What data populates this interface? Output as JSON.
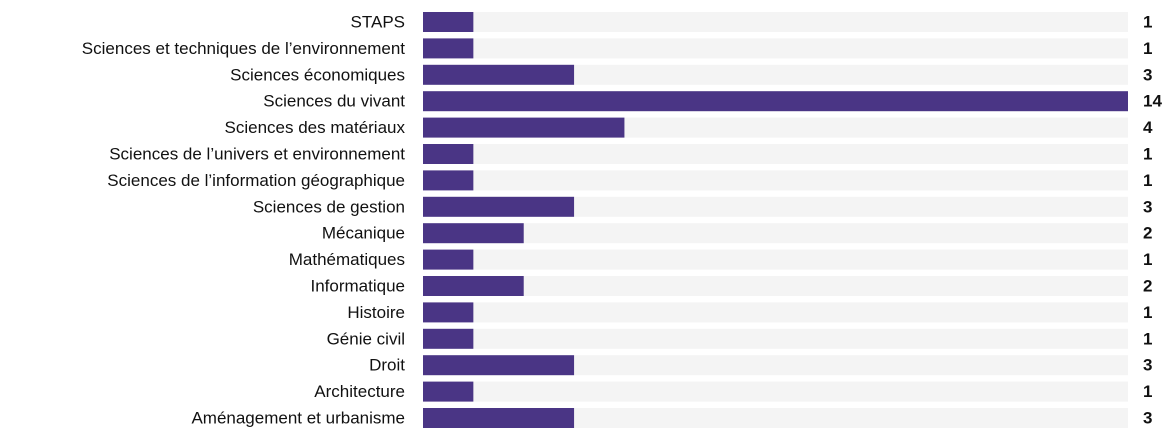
{
  "chart_data": {
    "type": "bar",
    "orientation": "horizontal",
    "categories": [
      "STAPS",
      "Sciences et techniques de l’environnement",
      "Sciences économiques",
      "Sciences du vivant",
      "Sciences des matériaux",
      "Sciences de l’univers et environnement",
      "Sciences de l’information géographique",
      "Sciences de gestion",
      "Mécanique",
      "Mathématiques",
      "Informatique",
      "Histoire",
      "Génie civil",
      "Droit",
      "Architecture",
      "Aménagement et urbanisme"
    ],
    "values": [
      1,
      1,
      3,
      14,
      4,
      1,
      1,
      3,
      2,
      1,
      2,
      1,
      1,
      3,
      1,
      3
    ],
    "color": "#4a3585"
  }
}
